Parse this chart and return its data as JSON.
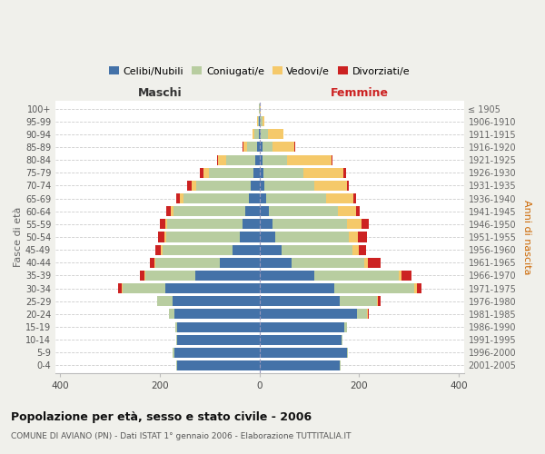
{
  "age_groups": [
    "0-4",
    "5-9",
    "10-14",
    "15-19",
    "20-24",
    "25-29",
    "30-34",
    "35-39",
    "40-44",
    "45-49",
    "50-54",
    "55-59",
    "60-64",
    "65-69",
    "70-74",
    "75-79",
    "80-84",
    "85-89",
    "90-94",
    "95-99",
    "100+"
  ],
  "birth_years": [
    "2001-2005",
    "1996-2000",
    "1991-1995",
    "1986-1990",
    "1981-1985",
    "1976-1980",
    "1971-1975",
    "1966-1970",
    "1961-1965",
    "1956-1960",
    "1951-1955",
    "1946-1950",
    "1941-1945",
    "1936-1940",
    "1931-1935",
    "1926-1930",
    "1921-1925",
    "1916-1920",
    "1911-1915",
    "1906-1910",
    "≤ 1905"
  ],
  "male": {
    "celibi": [
      165,
      172,
      165,
      165,
      172,
      175,
      190,
      130,
      80,
      55,
      40,
      35,
      28,
      22,
      17,
      12,
      8,
      5,
      2,
      1,
      0
    ],
    "coniugati": [
      2,
      2,
      2,
      5,
      10,
      30,
      85,
      100,
      130,
      140,
      148,
      150,
      145,
      130,
      110,
      90,
      60,
      20,
      8,
      3,
      1
    ],
    "vedovi": [
      0,
      0,
      0,
      0,
      0,
      0,
      2,
      2,
      2,
      4,
      4,
      5,
      5,
      8,
      10,
      10,
      15,
      8,
      5,
      1,
      0
    ],
    "divorziati": [
      0,
      0,
      0,
      0,
      0,
      0,
      8,
      8,
      8,
      10,
      12,
      10,
      10,
      8,
      8,
      8,
      2,
      1,
      0,
      0,
      0
    ]
  },
  "female": {
    "nubili": [
      160,
      175,
      165,
      170,
      195,
      160,
      150,
      110,
      65,
      45,
      32,
      25,
      18,
      14,
      10,
      8,
      5,
      5,
      2,
      1,
      0
    ],
    "coniugate": [
      2,
      2,
      2,
      5,
      20,
      75,
      160,
      170,
      145,
      142,
      148,
      150,
      140,
      120,
      100,
      80,
      50,
      20,
      15,
      4,
      1
    ],
    "vedove": [
      0,
      0,
      0,
      0,
      2,
      3,
      5,
      5,
      8,
      12,
      18,
      30,
      35,
      55,
      65,
      80,
      90,
      45,
      30,
      5,
      1
    ],
    "divorziate": [
      0,
      0,
      0,
      0,
      2,
      5,
      10,
      20,
      25,
      15,
      18,
      15,
      8,
      5,
      5,
      5,
      2,
      2,
      0,
      0,
      0
    ]
  },
  "colors": {
    "celibi": "#4472a8",
    "coniugati": "#b8cda0",
    "vedovi": "#f5c96a",
    "divorziati": "#cc2222"
  },
  "xlim": 410,
  "xticks": [
    -400,
    -200,
    0,
    200,
    400
  ],
  "title": "Popolazione per età, sesso e stato civile - 2006",
  "subtitle": "COMUNE DI AVIANO (PN) - Dati ISTAT 1° gennaio 2006 - Elaborazione TUTTITALIA.IT",
  "ylabel_left": "Fasce di età",
  "ylabel_right": "Anni di nascita",
  "xlabel_left": "Maschi",
  "xlabel_right": "Femmine",
  "bg_color": "#f0f0eb",
  "plot_bg": "#ffffff",
  "legend_labels": [
    "Celibi/Nubili",
    "Coniugati/e",
    "Vedovi/e",
    "Divorziati/e"
  ]
}
